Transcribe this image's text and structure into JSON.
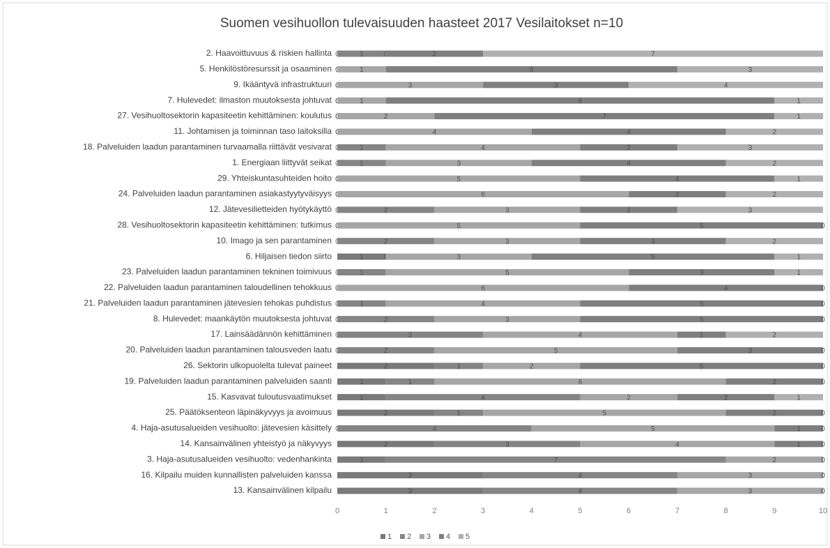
{
  "chart_data": {
    "type": "stacked_barh",
    "title": "Suomen vesihuollon tulevaisuuden haasteet 2017 Vesilaitokset n=10",
    "categories": [
      "2. Haavoittuvuus & riskien hallinta",
      "5. Henkilöstöresurssit ja osaaminen",
      "9. Ikääntyvä infrastruktuuri",
      "7. Hulevedet: ilmaston muutoksesta johtuvat",
      "27. Vesihuoltosektorin kapasiteetin kehittäminen: koulutus",
      "11. Johtamisen ja toiminnan taso laitoksilla",
      "18. Palveluiden laadun parantaminen turvaamalla riittävät vesivarat",
      "1. Energiaan liittyvät seikat",
      "29. Yhteiskuntasuhteiden hoito",
      "24. Palveluiden laadun parantaminen asiakastyytyväisyys",
      "12. Jätevesilietteiden hyötykäyttö",
      "28. Vesihuoltosektorin kapasiteetin kehittäminen: tutkimus",
      "10. Imago ja sen parantaminen",
      "6. Hiljaisen tiedon siirto",
      "23. Palveluiden laadun parantaminen tekninen toimivuus",
      "22. Palveluiden laadun parantaminen taloudellinen tehokkuus",
      "21. Palveluiden laadun parantaminen jätevesien tehokas puhdistus",
      "8. Hulevedet: maankäytön muutoksesta johtuvat",
      "17. Lainsäädännön kehittäminen",
      "20. Palveluiden laadun parantaminen talousveden laatu",
      "26. Sektorin ulkopuolelta tulevat paineet",
      "19. Palveluiden laadun parantaminen palveluiden saanti",
      "15. Kasvavat tuloutusvaatimukset",
      "25. Päätöksenteon läpinäkyvyys ja avoimuus",
      "4. Haja-asutusalueiden vesihuolto: jätevesien käsittely",
      "14. Kansainvälinen yhteistyö ja näkyvyys",
      "3. Haja-asutusalueiden vesihuolto: vedenhankinta",
      "16. Kilpailu muiden kunnallisten palveluiden kanssa",
      "13. Kansainvälinen kilpailu"
    ],
    "series": [
      {
        "name": "1",
        "color": "#7a7a7a",
        "values": [
          0,
          0,
          0,
          0,
          0,
          0,
          0,
          0,
          0,
          0,
          0,
          0,
          0,
          1,
          0,
          0,
          0,
          0,
          0,
          0,
          2,
          1,
          1,
          2,
          0,
          2,
          1,
          3,
          3
        ]
      },
      {
        "name": "2",
        "color": "#858585",
        "values": [
          1,
          0,
          0,
          0,
          0,
          0,
          1,
          1,
          0,
          0,
          2,
          0,
          2,
          0,
          1,
          0,
          1,
          2,
          3,
          2,
          1,
          1,
          4,
          1,
          4,
          3,
          7,
          4,
          4
        ]
      },
      {
        "name": "3",
        "color": "#a6a6a6",
        "values": [
          0,
          1,
          3,
          1,
          2,
          4,
          4,
          3,
          5,
          6,
          3,
          5,
          3,
          3,
          5,
          6,
          4,
          3,
          4,
          5,
          2,
          6,
          2,
          5,
          5,
          4,
          2,
          3,
          3
        ]
      },
      {
        "name": "4",
        "color": "#7f7f7f",
        "values": [
          2,
          6,
          3,
          8,
          7,
          4,
          2,
          4,
          4,
          2,
          2,
          5,
          3,
          5,
          3,
          4,
          5,
          5,
          1,
          3,
          5,
          2,
          2,
          2,
          1,
          1,
          0,
          0,
          0
        ]
      },
      {
        "name": "5",
        "color": "#b0b0b0",
        "values": [
          7,
          3,
          4,
          1,
          1,
          2,
          3,
          2,
          1,
          2,
          3,
          0,
          2,
          1,
          1,
          0,
          0,
          0,
          2,
          0,
          0,
          0,
          1,
          0,
          0,
          0,
          0,
          0,
          0
        ]
      }
    ],
    "xlim": [
      0,
      10
    ],
    "xticks": [
      0,
      1,
      2,
      3,
      4,
      5,
      6,
      7,
      8,
      9,
      10
    ]
  }
}
